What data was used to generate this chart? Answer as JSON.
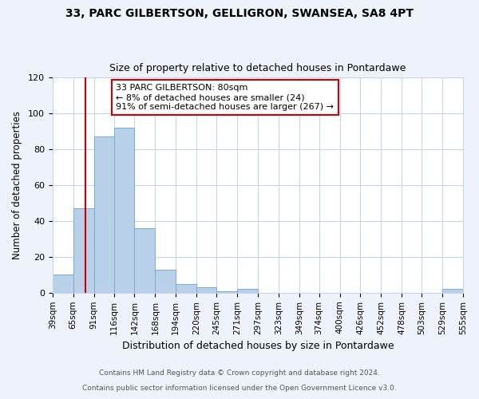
{
  "title1": "33, PARC GILBERTSON, GELLIGRON, SWANSEA, SA8 4PT",
  "title2": "Size of property relative to detached houses in Pontardawe",
  "xlabel": "Distribution of detached houses by size in Pontardawe",
  "ylabel": "Number of detached properties",
  "bar_edges": [
    39,
    65,
    91,
    116,
    142,
    168,
    194,
    220,
    245,
    271,
    297,
    323,
    349,
    374,
    400,
    426,
    452,
    478,
    503,
    529,
    555
  ],
  "bar_heights": [
    10,
    47,
    87,
    92,
    36,
    13,
    5,
    3,
    1,
    2,
    0,
    0,
    0,
    0,
    0,
    0,
    0,
    0,
    0,
    2
  ],
  "bar_color": "#b8d0e8",
  "bar_edgecolor": "#7aabd0",
  "ylim": [
    0,
    120
  ],
  "yticks": [
    0,
    20,
    40,
    60,
    80,
    100,
    120
  ],
  "vline_x": 80,
  "vline_color": "#cc0000",
  "annotation_box_text": "33 PARC GILBERTSON: 80sqm\n← 8% of detached houses are smaller (24)\n91% of semi-detached houses are larger (267) →",
  "footer1": "Contains HM Land Registry data © Crown copyright and database right 2024.",
  "footer2": "Contains public sector information licensed under the Open Government Licence v3.0.",
  "background_color": "#eef2fb",
  "plot_background_color": "#ffffff",
  "grid_color": "#c8d4e8",
  "tick_labels": [
    "39sqm",
    "65sqm",
    "91sqm",
    "116sqm",
    "142sqm",
    "168sqm",
    "194sqm",
    "220sqm",
    "245sqm",
    "271sqm",
    "297sqm",
    "323sqm",
    "349sqm",
    "374sqm",
    "400sqm",
    "426sqm",
    "452sqm",
    "478sqm",
    "503sqm",
    "529sqm",
    "555sqm"
  ]
}
